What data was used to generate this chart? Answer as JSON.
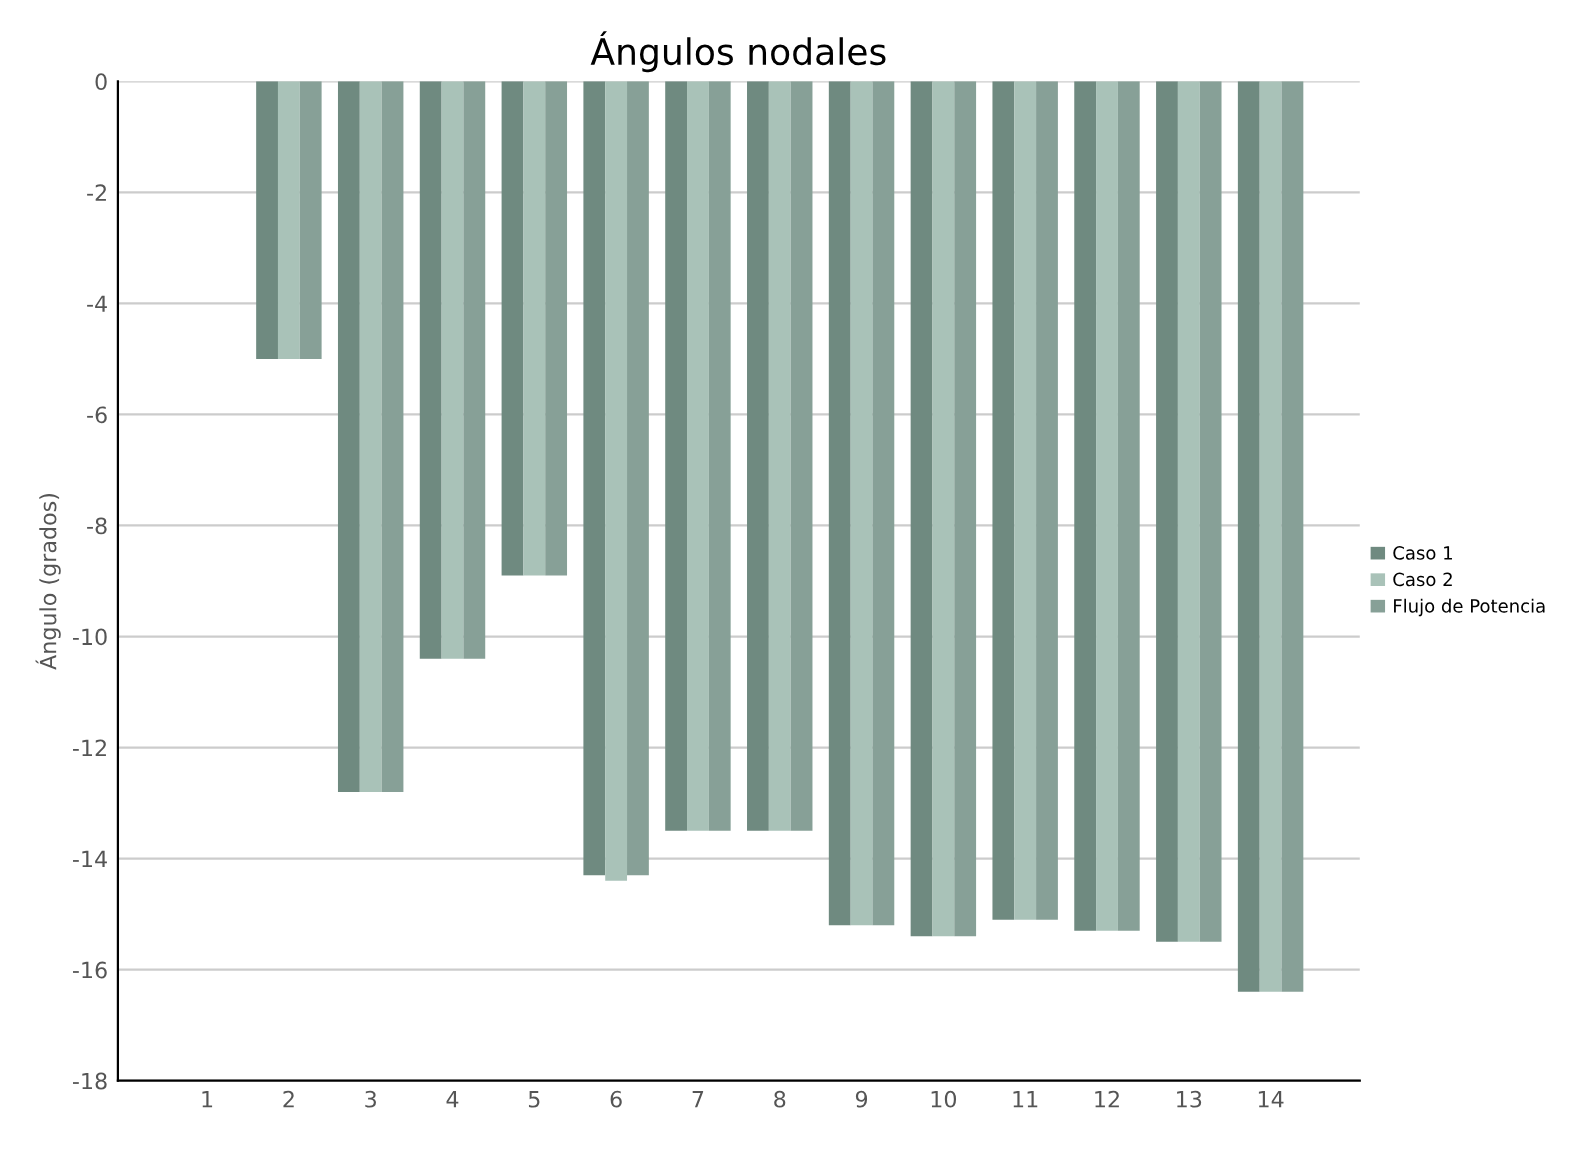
{
  "chart_data": {
    "type": "bar",
    "title": "Ángulos nodales",
    "ylabel": "Ángulo (grados)",
    "categories": [
      "1",
      "2",
      "3",
      "4",
      "5",
      "6",
      "7",
      "8",
      "9",
      "10",
      "11",
      "12",
      "13",
      "14"
    ],
    "series": [
      {
        "name": "Caso 1",
        "color": "#6f8a80",
        "values": [
          0,
          -5.0,
          -12.8,
          -10.4,
          -8.9,
          -14.3,
          -13.5,
          -13.5,
          -15.2,
          -15.4,
          -15.1,
          -15.3,
          -15.5,
          -16.4
        ]
      },
      {
        "name": "Caso 2",
        "color": "#a9c2b8",
        "values": [
          0,
          -5.0,
          -12.8,
          -10.4,
          -8.9,
          -14.4,
          -13.5,
          -13.5,
          -15.2,
          -15.4,
          -15.1,
          -15.3,
          -15.5,
          -16.4
        ]
      },
      {
        "name": "Flujo de Potencia",
        "color": "#87a097",
        "values": [
          0,
          -5.0,
          -12.8,
          -10.4,
          -8.9,
          -14.3,
          -13.5,
          -13.5,
          -15.2,
          -15.4,
          -15.1,
          -15.3,
          -15.5,
          -16.4
        ]
      }
    ],
    "ylim": [
      -18,
      0
    ],
    "yticks": [
      0,
      -2,
      -4,
      -6,
      -8,
      -10,
      -12,
      -14,
      -16,
      -18
    ],
    "grid": "y",
    "legend": "right"
  }
}
